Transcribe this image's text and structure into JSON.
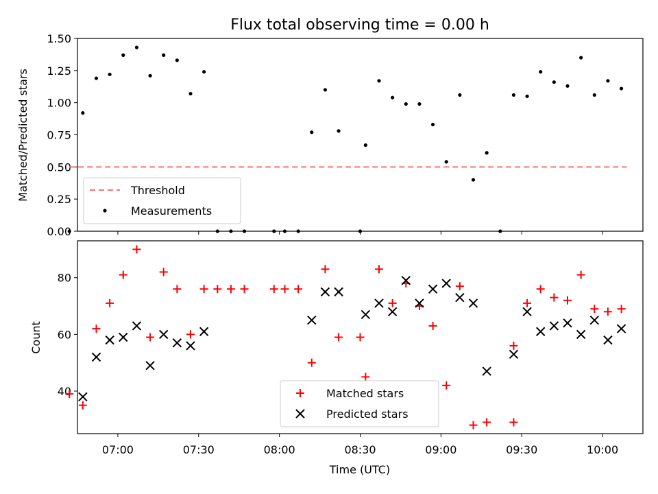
{
  "chart_data": [
    {
      "type": "scatter",
      "title": "Flux total observing time = 0.00 h",
      "xlabel": "",
      "ylabel": "Matched/Predicted stars",
      "xlim": [
        "06:45",
        "10:15"
      ],
      "ylim": [
        0,
        1.5
      ],
      "yticks": [
        0,
        0.25,
        0.5,
        0.75,
        1.0,
        1.25,
        1.5
      ],
      "ytick_labels": [
        "0.00",
        "0.25",
        "0.50",
        "0.75",
        "1.00",
        "1.25",
        "1.50"
      ],
      "grid": false,
      "legend_position": "lower-left",
      "threshold": {
        "name": "Threshold",
        "value": 0.5,
        "x_range": [
          "06:42",
          "10:09"
        ],
        "color": "#ff7070",
        "style": "dashed"
      },
      "series": [
        {
          "name": "Measurements",
          "color": "#000000",
          "marker": "dot",
          "points": [
            [
              "06:42",
              0.0
            ],
            [
              "06:47",
              0.92
            ],
            [
              "06:52",
              1.19
            ],
            [
              "06:57",
              1.22
            ],
            [
              "07:02",
              1.37
            ],
            [
              "07:07",
              1.43
            ],
            [
              "07:12",
              1.21
            ],
            [
              "07:17",
              1.37
            ],
            [
              "07:22",
              1.33
            ],
            [
              "07:27",
              1.07
            ],
            [
              "07:32",
              1.24
            ],
            [
              "07:37",
              0.0
            ],
            [
              "07:42",
              0.0
            ],
            [
              "07:47",
              0.0
            ],
            [
              "07:58",
              0.0
            ],
            [
              "08:02",
              0.0
            ],
            [
              "08:07",
              0.0
            ],
            [
              "08:12",
              0.77
            ],
            [
              "08:17",
              1.1
            ],
            [
              "08:22",
              0.78
            ],
            [
              "08:30",
              0.0
            ],
            [
              "08:32",
              0.67
            ],
            [
              "08:37",
              1.17
            ],
            [
              "08:42",
              1.04
            ],
            [
              "08:47",
              0.99
            ],
            [
              "08:52",
              0.99
            ],
            [
              "08:57",
              0.83
            ],
            [
              "09:02",
              0.54
            ],
            [
              "09:07",
              1.06
            ],
            [
              "09:12",
              0.4
            ],
            [
              "09:17",
              0.61
            ],
            [
              "09:22",
              0.0
            ],
            [
              "09:27",
              1.06
            ],
            [
              "09:32",
              1.05
            ],
            [
              "09:37",
              1.24
            ],
            [
              "09:42",
              1.16
            ],
            [
              "09:47",
              1.13
            ],
            [
              "09:52",
              1.35
            ],
            [
              "09:57",
              1.06
            ],
            [
              "10:02",
              1.17
            ],
            [
              "10:07",
              1.11
            ]
          ]
        }
      ]
    },
    {
      "type": "scatter",
      "title": "",
      "xlabel": "Time (UTC)",
      "ylabel": "Count",
      "xlim": [
        "06:45",
        "10:15"
      ],
      "ylim": [
        25,
        93
      ],
      "yticks": [
        40,
        60,
        80
      ],
      "ytick_labels": [
        "40",
        "60",
        "80"
      ],
      "xticks": [
        "07:00",
        "07:30",
        "08:00",
        "08:30",
        "09:00",
        "09:30",
        "10:00"
      ],
      "xtick_labels": [
        "07:00",
        "07:30",
        "08:00",
        "08:30",
        "09:00",
        "09:30",
        "10:00"
      ],
      "grid": false,
      "legend_position": "lower-center",
      "series": [
        {
          "name": "Matched stars",
          "color": "#ff0000",
          "marker": "plus",
          "points": [
            [
              "06:42",
              39
            ],
            [
              "06:47",
              35
            ],
            [
              "06:52",
              62
            ],
            [
              "06:57",
              71
            ],
            [
              "07:02",
              81
            ],
            [
              "07:07",
              90
            ],
            [
              "07:12",
              59
            ],
            [
              "07:17",
              82
            ],
            [
              "07:22",
              76
            ],
            [
              "07:27",
              60
            ],
            [
              "07:32",
              76
            ],
            [
              "07:37",
              76
            ],
            [
              "07:42",
              76
            ],
            [
              "07:47",
              76
            ],
            [
              "07:58",
              76
            ],
            [
              "08:02",
              76
            ],
            [
              "08:07",
              76
            ],
            [
              "08:12",
              50
            ],
            [
              "08:17",
              83
            ],
            [
              "08:22",
              59
            ],
            [
              "08:30",
              59
            ],
            [
              "08:32",
              45
            ],
            [
              "08:37",
              83
            ],
            [
              "08:42",
              71
            ],
            [
              "08:47",
              78
            ],
            [
              "08:52",
              70
            ],
            [
              "08:57",
              63
            ],
            [
              "09:02",
              42
            ],
            [
              "09:07",
              77
            ],
            [
              "09:12",
              28
            ],
            [
              "09:17",
              29
            ],
            [
              "09:27",
              29
            ],
            [
              "09:27",
              56
            ],
            [
              "09:32",
              71
            ],
            [
              "09:37",
              76
            ],
            [
              "09:42",
              73
            ],
            [
              "09:47",
              72
            ],
            [
              "09:52",
              81
            ],
            [
              "09:57",
              69
            ],
            [
              "10:02",
              68
            ],
            [
              "10:07",
              69
            ]
          ]
        },
        {
          "name": "Predicted stars",
          "color": "#000000",
          "marker": "x",
          "points": [
            [
              "06:47",
              38
            ],
            [
              "06:52",
              52
            ],
            [
              "06:57",
              58
            ],
            [
              "07:02",
              59
            ],
            [
              "07:07",
              63
            ],
            [
              "07:12",
              49
            ],
            [
              "07:17",
              60
            ],
            [
              "07:22",
              57
            ],
            [
              "07:27",
              56
            ],
            [
              "07:32",
              61
            ],
            [
              "08:12",
              65
            ],
            [
              "08:17",
              75
            ],
            [
              "08:22",
              75
            ],
            [
              "08:32",
              67
            ],
            [
              "08:37",
              71
            ],
            [
              "08:42",
              68
            ],
            [
              "08:47",
              79
            ],
            [
              "08:52",
              71
            ],
            [
              "08:57",
              76
            ],
            [
              "09:02",
              78
            ],
            [
              "09:07",
              73
            ],
            [
              "09:12",
              71
            ],
            [
              "09:17",
              47
            ],
            [
              "09:27",
              53
            ],
            [
              "09:32",
              68
            ],
            [
              "09:37",
              61
            ],
            [
              "09:42",
              63
            ],
            [
              "09:47",
              64
            ],
            [
              "09:52",
              60
            ],
            [
              "09:57",
              65
            ],
            [
              "10:02",
              58
            ],
            [
              "10:07",
              62
            ]
          ]
        }
      ]
    }
  ]
}
